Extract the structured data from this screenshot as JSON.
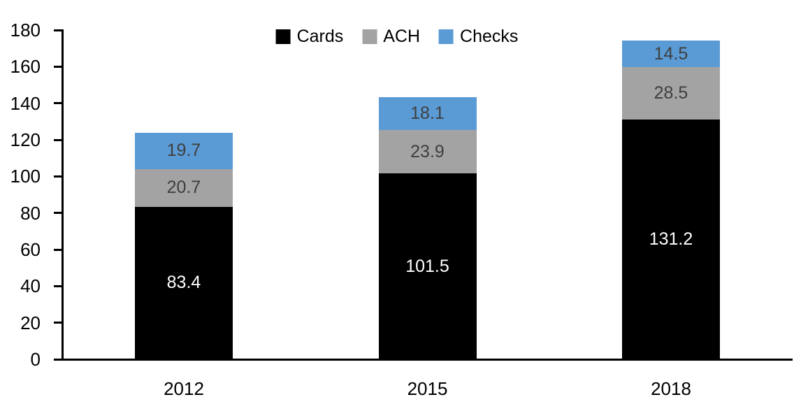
{
  "chart_data": {
    "type": "bar",
    "stacked": true,
    "title": "",
    "xlabel": "",
    "ylabel": "",
    "categories": [
      "2012",
      "2015",
      "2018"
    ],
    "series": [
      {
        "name": "Cards",
        "color": "#000000",
        "label_color": "#ffffff",
        "values": [
          83.4,
          101.5,
          131.2
        ]
      },
      {
        "name": "ACH",
        "color": "#a3a3a3",
        "label_color": "#3f3f3f",
        "values": [
          20.7,
          23.9,
          28.5
        ]
      },
      {
        "name": "Checks",
        "color": "#5b9bd5",
        "label_color": "#3f3f3f",
        "values": [
          19.7,
          18.1,
          14.5
        ]
      }
    ],
    "totals": [
      123.8,
      143.5,
      174.2
    ],
    "ylim": [
      0,
      180
    ],
    "ytick_step": 20,
    "yticks": [
      0,
      20,
      40,
      60,
      80,
      100,
      120,
      140,
      160,
      180
    ],
    "grid": false,
    "legend_position": "top",
    "axis_color": "#000000",
    "background_color": "#ffffff"
  }
}
